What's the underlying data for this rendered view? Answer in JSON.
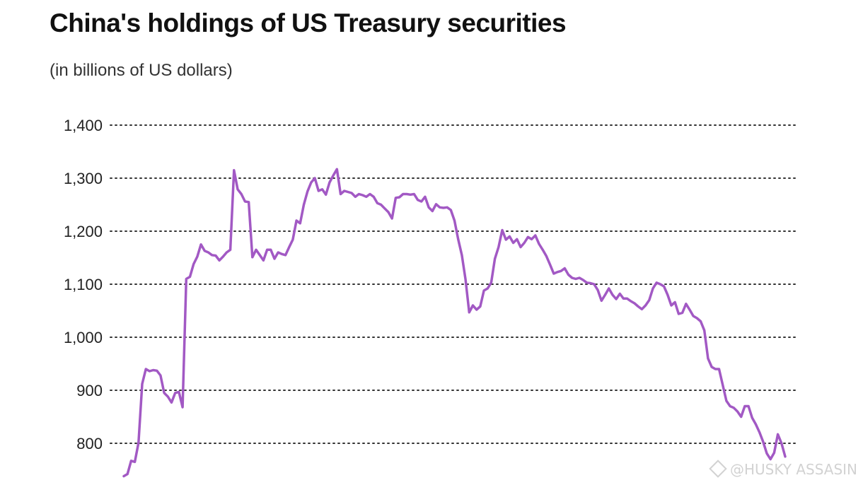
{
  "chart_data": {
    "type": "line",
    "title": "China's holdings of US Treasury securities",
    "subtitle": "(in billions of US dollars)",
    "xlabel": "",
    "ylabel": "",
    "ylim": [
      760,
      1400
    ],
    "yticks": [
      800,
      900,
      1000,
      1100,
      1200,
      1300,
      1400
    ],
    "ytick_labels": [
      "800",
      "900",
      "1,000",
      "1,100",
      "1,200",
      "1,300",
      "1,400"
    ],
    "grid": true,
    "color": "#a259c4",
    "series": [
      {
        "name": "China's holdings",
        "values": [
          738,
          742,
          767,
          765,
          801,
          912,
          940,
          936,
          938,
          937,
          928,
          895,
          888,
          877,
          895,
          897,
          868,
          1110,
          1114,
          1138,
          1152,
          1175,
          1163,
          1160,
          1155,
          1154,
          1145,
          1152,
          1160,
          1165,
          1315,
          1279,
          1270,
          1256,
          1255,
          1151,
          1165,
          1155,
          1145,
          1165,
          1165,
          1148,
          1160,
          1157,
          1155,
          1170,
          1184,
          1220,
          1215,
          1250,
          1275,
          1292,
          1300,
          1276,
          1279,
          1269,
          1292,
          1305,
          1317,
          1270,
          1276,
          1274,
          1272,
          1265,
          1270,
          1268,
          1265,
          1270,
          1265,
          1253,
          1250,
          1243,
          1236,
          1224,
          1263,
          1264,
          1270,
          1270,
          1269,
          1270,
          1259,
          1256,
          1265,
          1245,
          1238,
          1251,
          1245,
          1244,
          1245,
          1240,
          1220,
          1185,
          1155,
          1109,
          1047,
          1060,
          1052,
          1058,
          1088,
          1092,
          1103,
          1148,
          1170,
          1202,
          1184,
          1190,
          1178,
          1185,
          1170,
          1178,
          1189,
          1185,
          1192,
          1176,
          1165,
          1153,
          1137,
          1120,
          1123,
          1125,
          1130,
          1118,
          1112,
          1110,
          1112,
          1108,
          1103,
          1102,
          1100,
          1089,
          1069,
          1080,
          1092,
          1080,
          1072,
          1082,
          1073,
          1073,
          1068,
          1064,
          1058,
          1053,
          1060,
          1070,
          1092,
          1103,
          1100,
          1096,
          1080,
          1060,
          1066,
          1044,
          1046,
          1063,
          1052,
          1040,
          1036,
          1030,
          1013,
          960,
          944,
          940,
          940,
          910,
          880,
          870,
          867,
          860,
          850,
          870,
          870,
          848,
          836,
          821,
          803,
          781,
          770,
          782,
          817,
          800,
          775
        ]
      }
    ]
  },
  "watermark": {
    "text": "@HUSKY ASSASIN",
    "icon": "diamond-icon"
  }
}
